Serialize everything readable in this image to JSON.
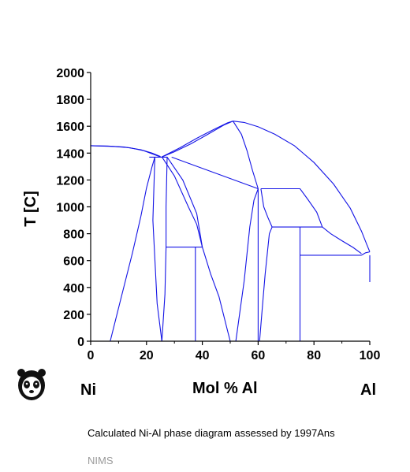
{
  "chart_data": {
    "type": "line",
    "title": "",
    "xlabel": "Mol % Al",
    "ylabel": "T [C]",
    "xlim": [
      0,
      100
    ],
    "ylim": [
      0,
      2000
    ],
    "x_ticks": [
      0,
      20,
      40,
      60,
      80,
      100
    ],
    "y_ticks": [
      0,
      200,
      400,
      600,
      800,
      1000,
      1200,
      1400,
      1600,
      1800,
      2000
    ],
    "line_color": "#1414e6",
    "grid": false,
    "series": [
      {
        "points": [
          [
            0,
            1455
          ],
          [
            6,
            1453
          ],
          [
            12,
            1445
          ],
          [
            18,
            1425
          ],
          [
            22,
            1400
          ],
          [
            25,
            1375
          ]
        ]
      },
      {
        "points": [
          [
            0,
            1455
          ],
          [
            8,
            1450
          ],
          [
            14,
            1440
          ],
          [
            19,
            1418
          ],
          [
            25,
            1372
          ]
        ]
      },
      {
        "points": [
          [
            25.5,
            1372
          ],
          [
            30,
            1410
          ],
          [
            36,
            1470
          ],
          [
            42,
            1540
          ],
          [
            48,
            1612
          ],
          [
            51,
            1638
          ]
        ]
      },
      {
        "points": [
          [
            25.5,
            1372
          ],
          [
            32,
            1440
          ],
          [
            38,
            1510
          ],
          [
            44,
            1575
          ],
          [
            49,
            1625
          ],
          [
            51,
            1638
          ]
        ]
      },
      {
        "points": [
          [
            51,
            1638
          ],
          [
            55,
            1628
          ],
          [
            60,
            1596
          ],
          [
            66,
            1540
          ],
          [
            73,
            1455
          ],
          [
            80,
            1330
          ],
          [
            87,
            1170
          ],
          [
            93,
            990
          ],
          [
            97,
            820
          ],
          [
            99,
            715
          ],
          [
            100,
            665
          ]
        ]
      },
      {
        "points": [
          [
            51,
            1638
          ],
          [
            54,
            1540
          ],
          [
            56,
            1420
          ],
          [
            58,
            1270
          ],
          [
            60,
            1135
          ]
        ]
      },
      {
        "points": [
          [
            21,
            1370
          ],
          [
            27.5,
            1370
          ]
        ]
      },
      {
        "points": [
          [
            29,
            1370
          ],
          [
            60,
            1135
          ]
        ]
      },
      {
        "points": [
          [
            61,
            1135
          ],
          [
            75,
            1135
          ]
        ]
      },
      {
        "points": [
          [
            65,
            850
          ],
          [
            83,
            850
          ]
        ]
      },
      {
        "points": [
          [
            75,
            640
          ],
          [
            97,
            640
          ]
        ]
      },
      {
        "points": [
          [
            27,
            700
          ],
          [
            40,
            700
          ]
        ]
      },
      {
        "points": [
          [
            75,
            1135
          ],
          [
            78,
            1050
          ],
          [
            81,
            960
          ],
          [
            83,
            850
          ],
          [
            86,
            800
          ],
          [
            90,
            748
          ],
          [
            94,
            698
          ],
          [
            97,
            652
          ]
        ]
      },
      {
        "points": [
          [
            97,
            640
          ],
          [
            98.5,
            658
          ],
          [
            100,
            665
          ]
        ]
      },
      {
        "points": [
          [
            7,
            0
          ],
          [
            11,
            330
          ],
          [
            15,
            660
          ],
          [
            18,
            930
          ],
          [
            20,
            1140
          ],
          [
            22,
            1300
          ],
          [
            23,
            1370
          ]
        ]
      },
      {
        "points": [
          [
            25.5,
            0
          ],
          [
            23.8,
            280
          ],
          [
            22.3,
            900
          ],
          [
            23,
            1370
          ]
        ]
      },
      {
        "points": [
          [
            25.5,
            0
          ],
          [
            26.6,
            350
          ],
          [
            27,
            700
          ],
          [
            27,
            1000
          ],
          [
            27.4,
            1370
          ]
        ]
      },
      {
        "points": [
          [
            27.4,
            1370
          ],
          [
            33,
            1200
          ],
          [
            38,
            950
          ],
          [
            40,
            700
          ]
        ]
      },
      {
        "points": [
          [
            25.5,
            1372
          ],
          [
            30,
            1230
          ],
          [
            35,
            1000
          ],
          [
            38,
            870
          ],
          [
            40,
            700
          ]
        ]
      },
      {
        "points": [
          [
            40,
            700
          ],
          [
            43,
            500
          ],
          [
            46,
            330
          ],
          [
            49,
            80
          ],
          [
            50,
            0
          ]
        ]
      },
      {
        "points": [
          [
            37.5,
            700
          ],
          [
            37.5,
            0
          ]
        ]
      },
      {
        "points": [
          [
            52,
            0
          ],
          [
            55,
            450
          ],
          [
            57,
            850
          ],
          [
            58.5,
            1050
          ],
          [
            60,
            1135
          ]
        ]
      },
      {
        "points": [
          [
            60,
            1135
          ],
          [
            60,
            0
          ]
        ]
      },
      {
        "points": [
          [
            60.5,
            0
          ],
          [
            61.5,
            250
          ],
          [
            62.5,
            500
          ],
          [
            64,
            800
          ],
          [
            65,
            850
          ]
        ]
      },
      {
        "points": [
          [
            61,
            1135
          ],
          [
            62,
            1000
          ],
          [
            63.5,
            920
          ],
          [
            65,
            850
          ]
        ]
      },
      {
        "points": [
          [
            75,
            850
          ],
          [
            75,
            0
          ]
        ]
      },
      {
        "points": [
          [
            100,
            640
          ],
          [
            100,
            440
          ]
        ]
      }
    ]
  },
  "labels": {
    "left_element": "Ni",
    "right_element": "Al",
    "caption": "Calculated Ni-Al phase diagram assessed by 1997Ans",
    "footer": "NIMS"
  },
  "logo": {
    "icon": "panda-icon"
  }
}
